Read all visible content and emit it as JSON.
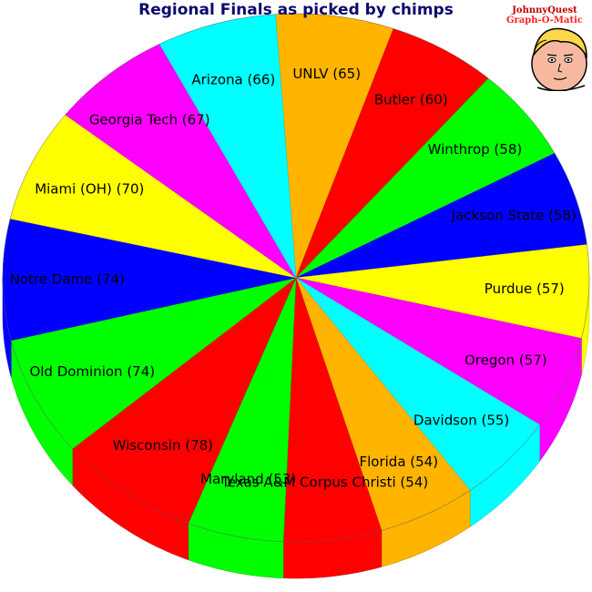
{
  "chart_data": {
    "type": "pie",
    "style": "3d",
    "title": "Regional Finals as picked by chimps",
    "slices": [
      {
        "label": "UNLV (65)",
        "value": 65,
        "color": "#ffb400"
      },
      {
        "label": "Butler (60)",
        "value": 60,
        "color": "#ff0000"
      },
      {
        "label": "Winthrop (58)",
        "value": 58,
        "color": "#00ff00"
      },
      {
        "label": "Jackson State (58)",
        "value": 58,
        "color": "#0000ff"
      },
      {
        "label": "Purdue (57)",
        "value": 57,
        "color": "#ffff00"
      },
      {
        "label": "Oregon (57)",
        "value": 57,
        "color": "#ff00ff"
      },
      {
        "label": "Davidson (55)",
        "value": 55,
        "color": "#00ffff"
      },
      {
        "label": "Florida (54)",
        "value": 54,
        "color": "#ffb400"
      },
      {
        "label": "Texas A&M Corpus Christi (54)",
        "value": 54,
        "color": "#ff0000"
      },
      {
        "label": "Maryland (53)",
        "value": 53,
        "color": "#00ff00"
      },
      {
        "label": "Wisconsin (78)",
        "value": 78,
        "color": "#ff0000"
      },
      {
        "label": "Old Dominion (74)",
        "value": 74,
        "color": "#00ff00"
      },
      {
        "label": "Notre Dame (74)",
        "value": 74,
        "color": "#0000ff"
      },
      {
        "label": "Miami (OH) (70)",
        "value": 70,
        "color": "#ffff00"
      },
      {
        "label": "Georgia Tech (67)",
        "value": 67,
        "color": "#ff00ff"
      },
      {
        "label": "Arizona (66)",
        "value": 66,
        "color": "#00ffff"
      }
    ]
  },
  "logo": {
    "line1": "JohnnyQuest",
    "line2": "Graph-O-Matic"
  }
}
